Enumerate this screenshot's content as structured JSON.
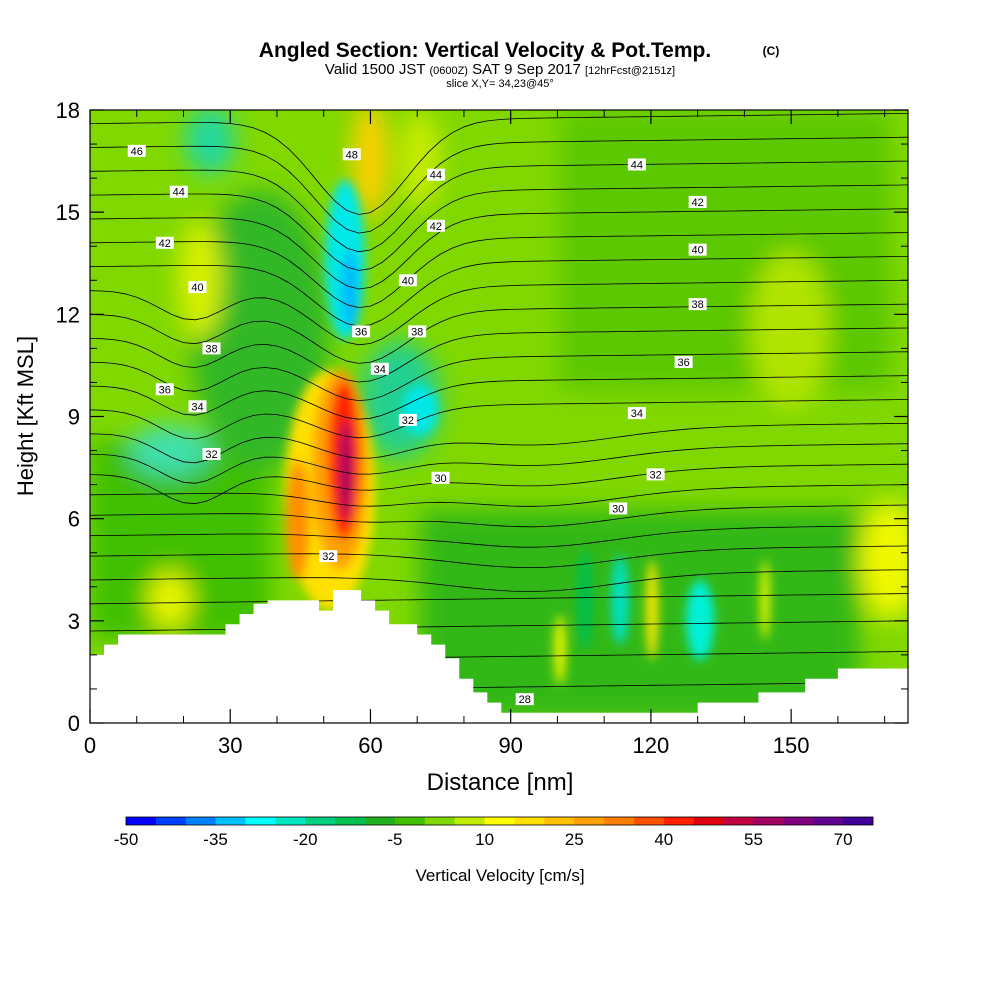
{
  "chart_data": {
    "type": "heatmap",
    "title": "Angled Section: Vertical Velocity & Pot.Temp.",
    "title_unit": "(C)",
    "subtitle": {
      "part1": "Valid 1500 JST",
      "part2": "(0600Z)",
      "part3": "SAT 9 Sep 2017",
      "part4": "[12hrFcst@2151z]"
    },
    "slice_label": "slice X,Y= 34,23@45°",
    "xlabel": "Distance [nm]",
    "ylabel": "Height [Kft MSL]",
    "xlim": [
      0,
      175
    ],
    "ylim": [
      0,
      18
    ],
    "xticks": [
      0,
      30,
      60,
      90,
      120,
      150
    ],
    "yticks": [
      0,
      3,
      6,
      9,
      12,
      15,
      18
    ],
    "colorbar": {
      "label": "Vertical Velocity [cm/s]",
      "min": -50,
      "max": 75,
      "step": 5,
      "tick_labels": [
        "-50",
        "-35",
        "-20",
        "-5",
        "10",
        "25",
        "40",
        "55",
        "70"
      ],
      "colors": [
        "#0000ff",
        "#0040ff",
        "#0080ff",
        "#00bfff",
        "#00ffff",
        "#00e6c0",
        "#00d080",
        "#00c050",
        "#20b020",
        "#40c000",
        "#80d800",
        "#c0ec00",
        "#ffff00",
        "#ffe000",
        "#ffc000",
        "#ffa000",
        "#ff8000",
        "#ff5000",
        "#ff2000",
        "#e00010",
        "#c00040",
        "#a00060",
        "#800080",
        "#600090",
        "#400098"
      ]
    },
    "contour_labels": [
      {
        "text": "46",
        "x": 10,
        "y": 16.8
      },
      {
        "text": "44",
        "x": 19,
        "y": 15.6
      },
      {
        "text": "42",
        "x": 16,
        "y": 14.1
      },
      {
        "text": "40",
        "x": 23,
        "y": 12.8
      },
      {
        "text": "38",
        "x": 26,
        "y": 11.0
      },
      {
        "text": "36",
        "x": 16,
        "y": 9.8
      },
      {
        "text": "34",
        "x": 23,
        "y": 9.3
      },
      {
        "text": "32",
        "x": 26,
        "y": 7.9
      },
      {
        "text": "48",
        "x": 56,
        "y": 16.7
      },
      {
        "text": "44",
        "x": 74,
        "y": 16.1
      },
      {
        "text": "42",
        "x": 74,
        "y": 14.6
      },
      {
        "text": "40",
        "x": 68,
        "y": 13.0
      },
      {
        "text": "38",
        "x": 70,
        "y": 11.5
      },
      {
        "text": "36",
        "x": 58,
        "y": 11.5
      },
      {
        "text": "34",
        "x": 62,
        "y": 10.4
      },
      {
        "text": "32",
        "x": 68,
        "y": 8.9
      },
      {
        "text": "30",
        "x": 75,
        "y": 7.2
      },
      {
        "text": "32",
        "x": 51,
        "y": 4.9
      },
      {
        "text": "44",
        "x": 117,
        "y": 16.4
      },
      {
        "text": "42",
        "x": 130,
        "y": 15.3
      },
      {
        "text": "40",
        "x": 130,
        "y": 13.9
      },
      {
        "text": "38",
        "x": 130,
        "y": 12.3
      },
      {
        "text": "36",
        "x": 127,
        "y": 10.6
      },
      {
        "text": "34",
        "x": 117,
        "y": 9.1
      },
      {
        "text": "32",
        "x": 121,
        "y": 7.3
      },
      {
        "text": "30",
        "x": 113,
        "y": 6.3
      },
      {
        "text": "28",
        "x": 93,
        "y": 0.7
      }
    ],
    "terrain": [
      [
        0,
        2.0
      ],
      [
        3,
        2.0
      ],
      [
        3,
        2.3
      ],
      [
        6,
        2.3
      ],
      [
        6,
        2.6
      ],
      [
        20,
        2.6
      ],
      [
        20,
        2.6
      ],
      [
        29,
        2.6
      ],
      [
        29,
        2.9
      ],
      [
        32,
        2.9
      ],
      [
        32,
        3.2
      ],
      [
        35,
        3.2
      ],
      [
        35,
        3.5
      ],
      [
        38,
        3.5
      ],
      [
        38,
        3.6
      ],
      [
        49,
        3.6
      ],
      [
        49,
        3.3
      ],
      [
        52,
        3.3
      ],
      [
        52,
        3.9
      ],
      [
        58,
        3.9
      ],
      [
        58,
        3.6
      ],
      [
        61,
        3.6
      ],
      [
        61,
        3.3
      ],
      [
        64,
        3.3
      ],
      [
        64,
        2.9
      ],
      [
        70,
        2.9
      ],
      [
        70,
        2.6
      ],
      [
        73,
        2.6
      ],
      [
        73,
        2.3
      ],
      [
        76,
        2.3
      ],
      [
        76,
        1.9
      ],
      [
        79,
        1.9
      ],
      [
        79,
        1.3
      ],
      [
        82,
        1.3
      ],
      [
        82,
        0.9
      ],
      [
        85,
        0.9
      ],
      [
        85,
        0.6
      ],
      [
        88,
        0.6
      ],
      [
        88,
        0.3
      ],
      [
        130,
        0.3
      ],
      [
        130,
        0.6
      ],
      [
        143,
        0.6
      ],
      [
        143,
        0.9
      ],
      [
        153,
        0.9
      ],
      [
        153,
        1.3
      ],
      [
        160,
        1.3
      ],
      [
        160,
        1.6
      ],
      [
        175,
        1.6
      ]
    ]
  }
}
